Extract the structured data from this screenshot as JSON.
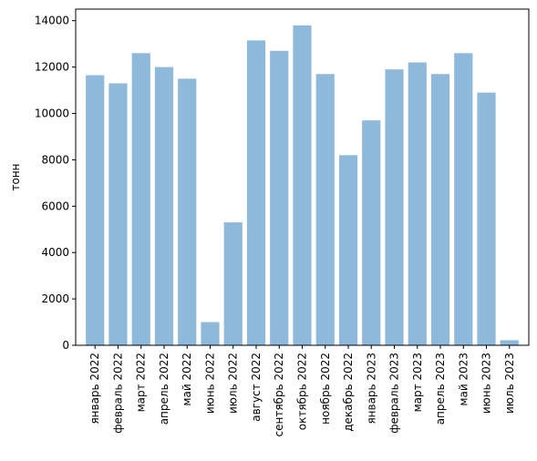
{
  "chart_data": {
    "type": "bar",
    "title": "",
    "xlabel": "",
    "ylabel": "тонн",
    "ylim": [
      0,
      14500
    ],
    "yticks": [
      0,
      2000,
      4000,
      6000,
      8000,
      10000,
      12000,
      14000
    ],
    "grid": false,
    "bar_color": "#8fb9da",
    "categories": [
      "январь 2022",
      "февраль 2022",
      "март 2022",
      "апрель 2022",
      "май 2022",
      "июнь 2022",
      "июль 2022",
      "август 2022",
      "сентябрь 2022",
      "октябрь 2022",
      "ноябрь 2022",
      "декабрь 2022",
      "январь 2023",
      "февраль 2023",
      "март 2023",
      "апрель 2023",
      "май 2023",
      "июнь 2023",
      "июль 2023"
    ],
    "values": [
      11650,
      11300,
      12600,
      12000,
      11500,
      1000,
      5300,
      13150,
      12700,
      13800,
      11700,
      8200,
      9700,
      11900,
      12200,
      11700,
      12600,
      10900,
      220
    ]
  }
}
